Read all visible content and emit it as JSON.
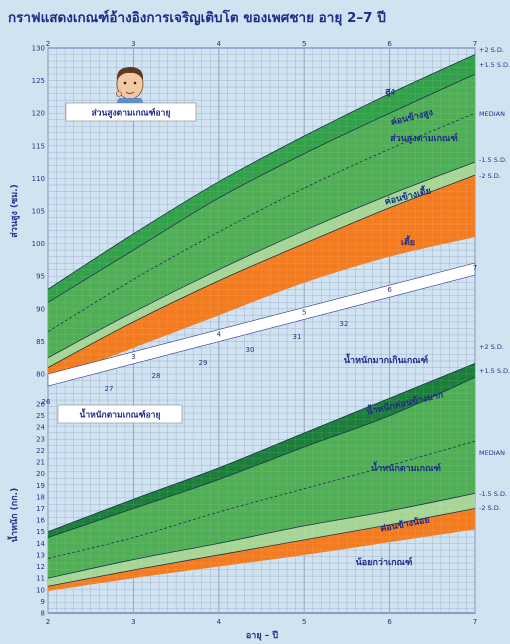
{
  "chart_data": {
    "title": "กราฟแสดงเกณฑ์อ้างอิงการเจริญเติบโต ของเพศชาย อายุ 2–7 ปี",
    "xlabel": "อายุ – ปี",
    "x_ticks": [
      "2",
      "3",
      "4",
      "5",
      "6",
      "7"
    ],
    "x_range": [
      2,
      7
    ],
    "panels": [
      {
        "type": "area",
        "name": "height",
        "ylabel": "ส่วนสูง (ซม.)",
        "y_range": [
          78,
          130
        ],
        "y_ticks": [
          80,
          85,
          90,
          95,
          100,
          105,
          110,
          115,
          120,
          125,
          130
        ],
        "box_label": "ส่วนสูงตามเกณฑ์อายุ",
        "x": [
          2,
          3,
          4,
          5,
          6,
          7
        ],
        "curves": {
          "plus2": [
            93.0,
            101.5,
            109.5,
            116.5,
            123.0,
            129.0
          ],
          "plus15": [
            91.0,
            99.0,
            107.0,
            113.8,
            120.0,
            126.0
          ],
          "median": [
            86.5,
            94.5,
            101.8,
            108.5,
            114.5,
            120.0
          ],
          "minus15": [
            82.5,
            89.5,
            96.0,
            102.0,
            107.5,
            112.5
          ],
          "minus2": [
            81.0,
            88.0,
            94.3,
            100.0,
            105.5,
            110.5
          ],
          "floor": [
            79.0,
            84.0,
            89.0,
            94.0,
            98.0,
            101.0
          ]
        },
        "band_labels": [
          "สูง",
          "ค่อนข้างสูง",
          "ส่วนสูงตามเกณฑ์",
          "ค่อนข้างเตี้ย",
          "เตี้ย"
        ],
        "sd_labels": [
          "+2 S.D.",
          "+1.5 S.D.",
          "MEDIAN",
          "-1.5 S.D.",
          "-2 S.D."
        ]
      },
      {
        "type": "area",
        "name": "weight",
        "ylabel": "น้ำหนัก (กก.)",
        "y_range": [
          8,
          32
        ],
        "y_ticks": [
          8,
          9,
          10,
          11,
          12,
          13,
          14,
          15,
          16,
          17,
          18,
          19,
          20,
          21,
          22,
          23,
          24,
          25,
          26
        ],
        "upper_ticks": [
          26,
          27,
          28,
          29,
          30,
          31,
          32
        ],
        "box_label": "น้ำหนักตามเกณฑ์อายุ",
        "x": [
          2,
          3,
          4,
          5,
          6,
          7
        ],
        "curves": {
          "plus2": [
            15.0,
            17.8,
            20.5,
            23.5,
            26.5,
            29.5
          ],
          "plus15": [
            14.5,
            17.0,
            19.5,
            22.3,
            25.0,
            28.3
          ],
          "median": [
            12.7,
            14.5,
            16.7,
            18.7,
            20.7,
            22.8
          ],
          "minus15": [
            11.0,
            12.6,
            14.0,
            15.5,
            16.8,
            18.3
          ],
          "minus2": [
            10.3,
            11.7,
            13.0,
            14.3,
            15.6,
            17.0
          ],
          "floor": [
            9.9,
            11.0,
            12.0,
            13.0,
            14.1,
            15.2
          ]
        },
        "band_labels": [
          "น้ำหนักมากเกินเกณฑ์",
          "น้ำหนักค่อนข้างมาก",
          "น้ำหนักตามเกณฑ์",
          "ค่อนข้างน้อย",
          "น้อยกว่าเกณฑ์"
        ],
        "sd_labels": [
          "+2 S.D.",
          "+1.5 S.D.",
          "MEDIAN",
          "-1.5 S.D.",
          "-2 S.D."
        ]
      }
    ],
    "colors": {
      "top_band": "#33a04a",
      "upper_band": "#1b7f3a",
      "median_band": "#4fae56",
      "lower_band": "#a6d596",
      "low_band": "#f47c20",
      "separator": "#ffffff",
      "background": "#cfe3f1",
      "text": "#1f2d8a"
    }
  }
}
